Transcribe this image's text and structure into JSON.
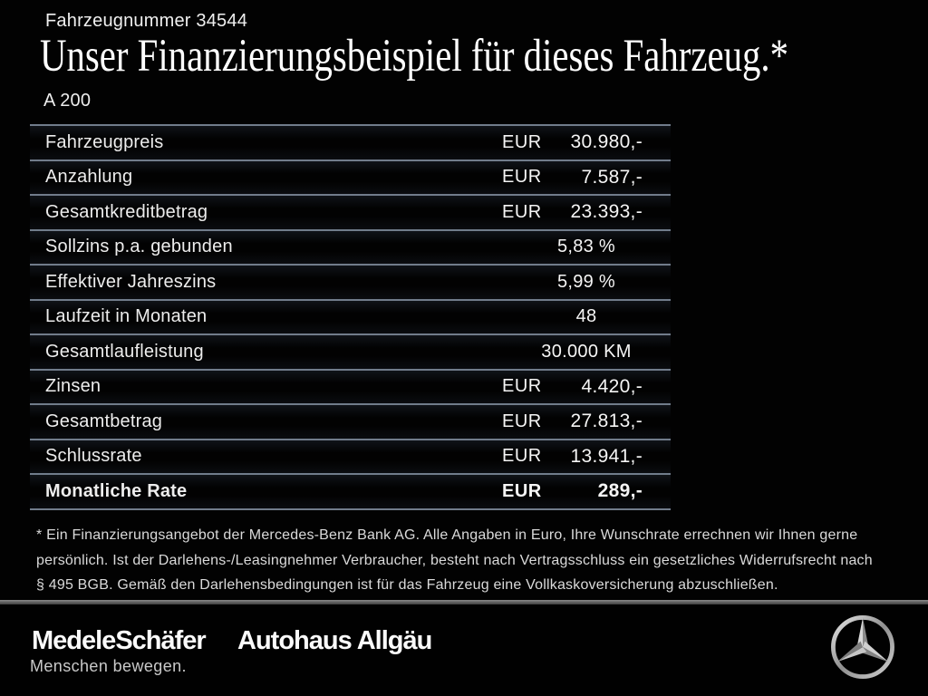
{
  "header": {
    "vehicle_number": "Fahrzeugnummer 34544",
    "title": "Unser Finanzierungsbeispiel für dieses Fahrzeug.*",
    "model": "A 200"
  },
  "table": {
    "rows": [
      {
        "label": "Fahrzeugpreis",
        "currency": "EUR",
        "value": "30.980,-",
        "emphasis": false
      },
      {
        "label": "Anzahlung",
        "currency": "EUR",
        "value": "7.587,-",
        "emphasis": false
      },
      {
        "label": "Gesamtkreditbetrag",
        "currency": "EUR",
        "value": "23.393,-",
        "emphasis": false
      },
      {
        "label": "Sollzins p.a. gebunden",
        "currency": "",
        "value": "5,83 %",
        "emphasis": false
      },
      {
        "label": "Effektiver Jahreszins",
        "currency": "",
        "value": "5,99 %",
        "emphasis": false
      },
      {
        "label": "Laufzeit in Monaten",
        "currency": "",
        "value": "48",
        "emphasis": false
      },
      {
        "label": "Gesamtlaufleistung",
        "currency": "",
        "value": "30.000 KM",
        "emphasis": false
      },
      {
        "label": "Zinsen",
        "currency": "EUR",
        "value": "4.420,-",
        "emphasis": false
      },
      {
        "label": "Gesamtbetrag",
        "currency": "EUR",
        "value": "27.813,-",
        "emphasis": false
      },
      {
        "label": "Schlussrate",
        "currency": "EUR",
        "value": "13.941,-",
        "emphasis": false
      },
      {
        "label": "Monatliche Rate",
        "currency": "EUR",
        "value": "289,-",
        "emphasis": true
      }
    ]
  },
  "footnote_lines": [
    "* Ein Finanzierungsangebot der Mercedes-Benz Bank AG. Alle Angaben in Euro, Ihre Wunschrate errechnen wir Ihnen gerne",
    "persönlich. Ist der Darlehens-/Leasingnehmer Verbraucher, besteht nach Vertragsschluss ein gesetzliches Widerrufsrecht nach",
    "§ 495 BGB. Gemäß den Darlehensbedingungen ist für das Fahrzeug eine Vollkaskoversicherung abzuschließen."
  ],
  "footer": {
    "dealer_name": "MedeleSchäfer",
    "dealer_tagline": "Menschen bewegen.",
    "dealer_name_2": "Autohaus Allgäu",
    "brand_icon": "mercedes-star"
  },
  "colors": {
    "background": "#020202",
    "text": "#f0f0f0",
    "table_line": "#717c8b",
    "divider": "#5e5e5e",
    "footnote_text": "#dadada"
  }
}
